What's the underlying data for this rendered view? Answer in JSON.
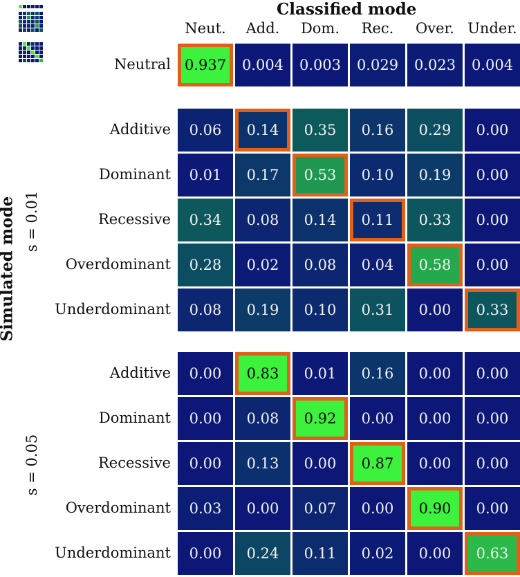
{
  "colors": {
    "low": "#0c1778",
    "mid": "#0d5a5c",
    "high": "#3df23d",
    "highlight": "#e05f1a",
    "grid": "#ffffff"
  },
  "chart_data": {
    "type": "heatmap",
    "title": "Classified mode",
    "ylabel": "Simulated mode",
    "columns": [
      "Neut.",
      "Add.",
      "Dom.",
      "Rec.",
      "Over.",
      "Under."
    ],
    "groups": [
      {
        "label": "",
        "rows": [
          {
            "name": "Neutral",
            "values": [
              "0.937",
              "0.004",
              "0.003",
              "0.029",
              "0.023",
              "0.004"
            ],
            "highlight": 0
          }
        ]
      },
      {
        "label": "s = 0.01",
        "rows": [
          {
            "name": "Additive",
            "values": [
              "0.06",
              "0.14",
              "0.35",
              "0.16",
              "0.29",
              "0.00"
            ],
            "highlight": 1
          },
          {
            "name": "Dominant",
            "values": [
              "0.01",
              "0.17",
              "0.53",
              "0.10",
              "0.19",
              "0.00"
            ],
            "highlight": 2
          },
          {
            "name": "Recessive",
            "values": [
              "0.34",
              "0.08",
              "0.14",
              "0.11",
              "0.33",
              "0.00"
            ],
            "highlight": 3
          },
          {
            "name": "Overdominant",
            "values": [
              "0.28",
              "0.02",
              "0.08",
              "0.04",
              "0.58",
              "0.00"
            ],
            "highlight": 4
          },
          {
            "name": "Underdominant",
            "values": [
              "0.08",
              "0.19",
              "0.10",
              "0.31",
              "0.00",
              "0.33"
            ],
            "highlight": 5
          }
        ]
      },
      {
        "label": "s = 0.05",
        "rows": [
          {
            "name": "Additive",
            "values": [
              "0.00",
              "0.83",
              "0.01",
              "0.16",
              "0.00",
              "0.00"
            ],
            "highlight": 1
          },
          {
            "name": "Dominant",
            "values": [
              "0.00",
              "0.08",
              "0.92",
              "0.00",
              "0.00",
              "0.00"
            ],
            "highlight": 2
          },
          {
            "name": "Recessive",
            "values": [
              "0.00",
              "0.13",
              "0.00",
              "0.87",
              "0.00",
              "0.00"
            ],
            "highlight": 3
          },
          {
            "name": "Overdominant",
            "values": [
              "0.03",
              "0.00",
              "0.07",
              "0.00",
              "0.90",
              "0.00"
            ],
            "highlight": 4
          },
          {
            "name": "Underdominant",
            "values": [
              "0.00",
              "0.24",
              "0.11",
              "0.02",
              "0.00",
              "0.63"
            ],
            "highlight": 5
          }
        ]
      }
    ]
  }
}
